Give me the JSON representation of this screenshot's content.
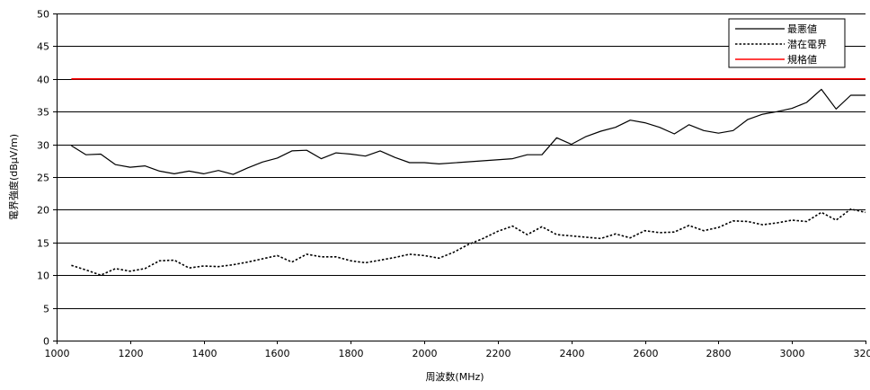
{
  "chart_data": {
    "type": "line",
    "title": "",
    "xlabel": "周波数(MHz)",
    "ylabel": "電界強度(dBμV/m)",
    "xlim": [
      1000,
      3200
    ],
    "ylim": [
      0,
      50
    ],
    "xticks": [
      1000,
      1200,
      1400,
      1600,
      1800,
      2000,
      2200,
      2400,
      2600,
      2800,
      3000,
      3200
    ],
    "yticks": [
      0,
      5,
      10,
      15,
      20,
      25,
      30,
      35,
      40,
      45,
      50
    ],
    "grid": "horizontal",
    "legend_position": "top-right",
    "series": [
      {
        "name": "最悪値",
        "color": "#000000",
        "style": "solid",
        "x": [
          1040,
          1080,
          1120,
          1160,
          1200,
          1240,
          1280,
          1320,
          1360,
          1400,
          1440,
          1480,
          1520,
          1560,
          1600,
          1640,
          1680,
          1720,
          1760,
          1800,
          1840,
          1880,
          1920,
          1960,
          2000,
          2040,
          2240,
          2280,
          2320,
          2360,
          2400,
          2440,
          2480,
          2520,
          2560,
          2600,
          2640,
          2680,
          2720,
          2760,
          2800,
          2840,
          2880,
          2920,
          2960,
          3000,
          3040,
          3080,
          3120,
          3160,
          3200
        ],
        "y": [
          29.8,
          28.4,
          28.5,
          26.9,
          26.5,
          26.7,
          25.9,
          25.5,
          25.9,
          25.5,
          26.0,
          25.4,
          26.4,
          27.3,
          27.9,
          29.0,
          29.1,
          27.8,
          28.7,
          28.5,
          28.2,
          29.0,
          28.0,
          27.2,
          27.2,
          27.0,
          27.8,
          28.4,
          28.4,
          31.0,
          30.0,
          31.2,
          32.0,
          32.6,
          33.7,
          33.3,
          32.6,
          31.6,
          33.0,
          32.1,
          31.7,
          32.1,
          33.8,
          34.6,
          35.0,
          35.5,
          36.4,
          38.4,
          35.4,
          37.5,
          37.5
        ]
      },
      {
        "name": "潜在電界",
        "color": "#000000",
        "style": "dotted",
        "x": [
          1040,
          1080,
          1120,
          1160,
          1200,
          1240,
          1280,
          1320,
          1360,
          1400,
          1440,
          1480,
          1520,
          1560,
          1600,
          1640,
          1680,
          1720,
          1760,
          1800,
          1840,
          1880,
          1920,
          1960,
          2000,
          2040,
          2080,
          2120,
          2160,
          2200,
          2240,
          2280,
          2320,
          2360,
          2400,
          2440,
          2480,
          2520,
          2560,
          2600,
          2640,
          2680,
          2720,
          2760,
          2800,
          2840,
          2880,
          2920,
          2960,
          3000,
          3040,
          3080,
          3120,
          3160,
          3200
        ],
        "y": [
          11.5,
          10.8,
          10.0,
          11.0,
          10.6,
          11.0,
          12.2,
          12.3,
          11.1,
          11.4,
          11.3,
          11.6,
          12.0,
          12.5,
          13.0,
          12.0,
          13.2,
          12.8,
          12.8,
          12.2,
          11.9,
          12.3,
          12.7,
          13.2,
          13.0,
          12.6,
          13.5,
          14.7,
          15.6,
          16.7,
          17.5,
          16.2,
          17.4,
          16.2,
          16.0,
          15.8,
          15.6,
          16.3,
          15.7,
          16.8,
          16.5,
          16.6,
          17.6,
          16.8,
          17.3,
          18.3,
          18.2,
          17.7,
          18.0,
          18.4,
          18.2,
          19.6,
          18.4,
          20.1,
          19.6
        ]
      },
      {
        "name": "規格値",
        "color": "#ff0000",
        "style": "solid",
        "x": [
          1040,
          3200
        ],
        "y": [
          40,
          40
        ]
      }
    ]
  }
}
